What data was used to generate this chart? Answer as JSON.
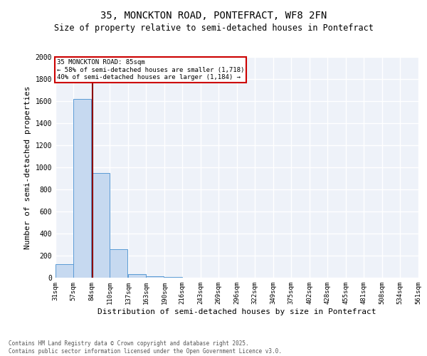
{
  "title": "35, MONCKTON ROAD, PONTEFRACT, WF8 2FN",
  "subtitle": "Size of property relative to semi-detached houses in Pontefract",
  "xlabel": "Distribution of semi-detached houses by size in Pontefract",
  "ylabel": "Number of semi-detached properties",
  "bin_labels": [
    "31sqm",
    "57sqm",
    "84sqm",
    "110sqm",
    "137sqm",
    "163sqm",
    "190sqm",
    "216sqm",
    "243sqm",
    "269sqm",
    "296sqm",
    "322sqm",
    "349sqm",
    "375sqm",
    "402sqm",
    "428sqm",
    "455sqm",
    "481sqm",
    "508sqm",
    "534sqm",
    "561sqm"
  ],
  "bin_edges": [
    31,
    57,
    84,
    110,
    137,
    163,
    190,
    216,
    243,
    269,
    296,
    322,
    349,
    375,
    402,
    428,
    455,
    481,
    508,
    534,
    561
  ],
  "bar_heights": [
    120,
    1620,
    950,
    260,
    35,
    15,
    5,
    0,
    0,
    0,
    0,
    0,
    0,
    0,
    0,
    0,
    0,
    0,
    0,
    0
  ],
  "bar_color": "#c6d9f0",
  "bar_edge_color": "#5b9bd5",
  "property_size": 85,
  "marker_line_color": "#8B0000",
  "ylim": [
    0,
    2000
  ],
  "annotation_text": "35 MONCKTON ROAD: 85sqm\n← 58% of semi-detached houses are smaller (1,718)\n40% of semi-detached houses are larger (1,184) →",
  "annotation_box_color": "#ffffff",
  "annotation_border_color": "#cc0000",
  "footer": "Contains HM Land Registry data © Crown copyright and database right 2025.\nContains public sector information licensed under the Open Government Licence v3.0.",
  "bg_color": "#eef2f9",
  "grid_color": "#ffffff",
  "title_fontsize": 10,
  "subtitle_fontsize": 8.5,
  "tick_fontsize": 6.5,
  "label_fontsize": 8,
  "footer_fontsize": 5.5
}
